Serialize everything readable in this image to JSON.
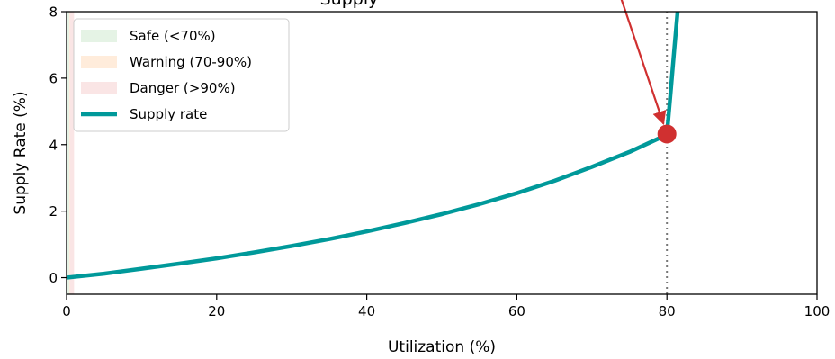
{
  "chart_data": {
    "type": "line",
    "title": "Supply",
    "xlabel": "Utilization (%)",
    "ylabel": "Supply Rate (%)",
    "xlim": [
      0,
      100
    ],
    "ylim": [
      -0.5,
      8
    ],
    "xticks": [
      0,
      20,
      40,
      60,
      80,
      100
    ],
    "yticks": [
      0,
      2,
      4,
      6,
      8
    ],
    "grid": false,
    "legend_position": "top-left",
    "bands": [
      {
        "name": "Safe (<70%)",
        "color": "#2ca02c",
        "opacity": 0.12,
        "x0": 0,
        "x1": 0.35
      },
      {
        "name": "Warning (70-90%)",
        "color": "#ff7f0e",
        "opacity": 0.15,
        "x0": 0.35,
        "x1": 0.45
      },
      {
        "name": "Danger (>90%)",
        "color": "#d62728",
        "opacity": 0.12,
        "x0": 0.45,
        "x1": 1.0
      }
    ],
    "series": [
      {
        "name": "Supply rate",
        "color": "#00999a",
        "x": [
          0,
          5,
          10,
          15,
          20,
          25,
          30,
          35,
          40,
          45,
          50,
          55,
          60,
          65,
          70,
          75,
          80,
          80.5,
          81,
          81.5
        ],
        "y": [
          0,
          0.12,
          0.27,
          0.42,
          0.58,
          0.76,
          0.95,
          1.16,
          1.39,
          1.64,
          1.91,
          2.21,
          2.54,
          2.91,
          3.33,
          3.78,
          4.3,
          5.6,
          6.9,
          8.2
        ]
      }
    ],
    "kink": {
      "x": 80,
      "y": 4.32,
      "color": "#d03030"
    },
    "arrow": {
      "from": {
        "x": 73.0,
        "y": 9.0
      },
      "to": {
        "x": 80,
        "y": 4.32
      },
      "color": "#d03030"
    },
    "vline": {
      "x": 80,
      "color": "#777777"
    }
  }
}
